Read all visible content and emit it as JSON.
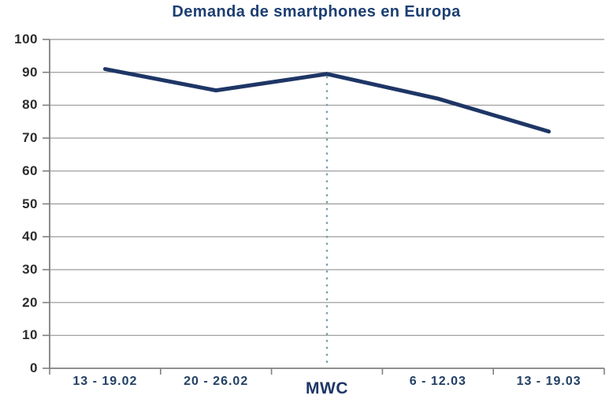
{
  "chart_data": {
    "type": "line",
    "title": "Demanda de smartphones en Europa",
    "categories": [
      "13 - 19.02",
      "20 - 26.02",
      "MWC",
      "6 - 12.03",
      "13 - 19.03"
    ],
    "series": [
      {
        "name": "Demanda de smartphones",
        "values": [
          91,
          84.5,
          89.5,
          82,
          72
        ]
      }
    ],
    "xlabel": "",
    "ylabel": "",
    "ylim": [
      0,
      100
    ],
    "yticks": [
      0,
      10,
      20,
      30,
      40,
      50,
      60,
      70,
      80,
      90,
      100
    ],
    "grid": "horizontal",
    "legend": "none",
    "emphasized_category_index": 2,
    "annotation": {
      "type": "vertical-dotted-line",
      "at_category_index": 2,
      "label": "MWC"
    },
    "colors": {
      "line": "#1e3666",
      "title": "#1d3f72",
      "xtick_labels": "#234064",
      "ytick_labels": "#2d2d2d",
      "gridline": "#a6a6a6",
      "axis": "#808080",
      "dotted_line": "#7d9dab",
      "background": "#ffffff"
    }
  }
}
